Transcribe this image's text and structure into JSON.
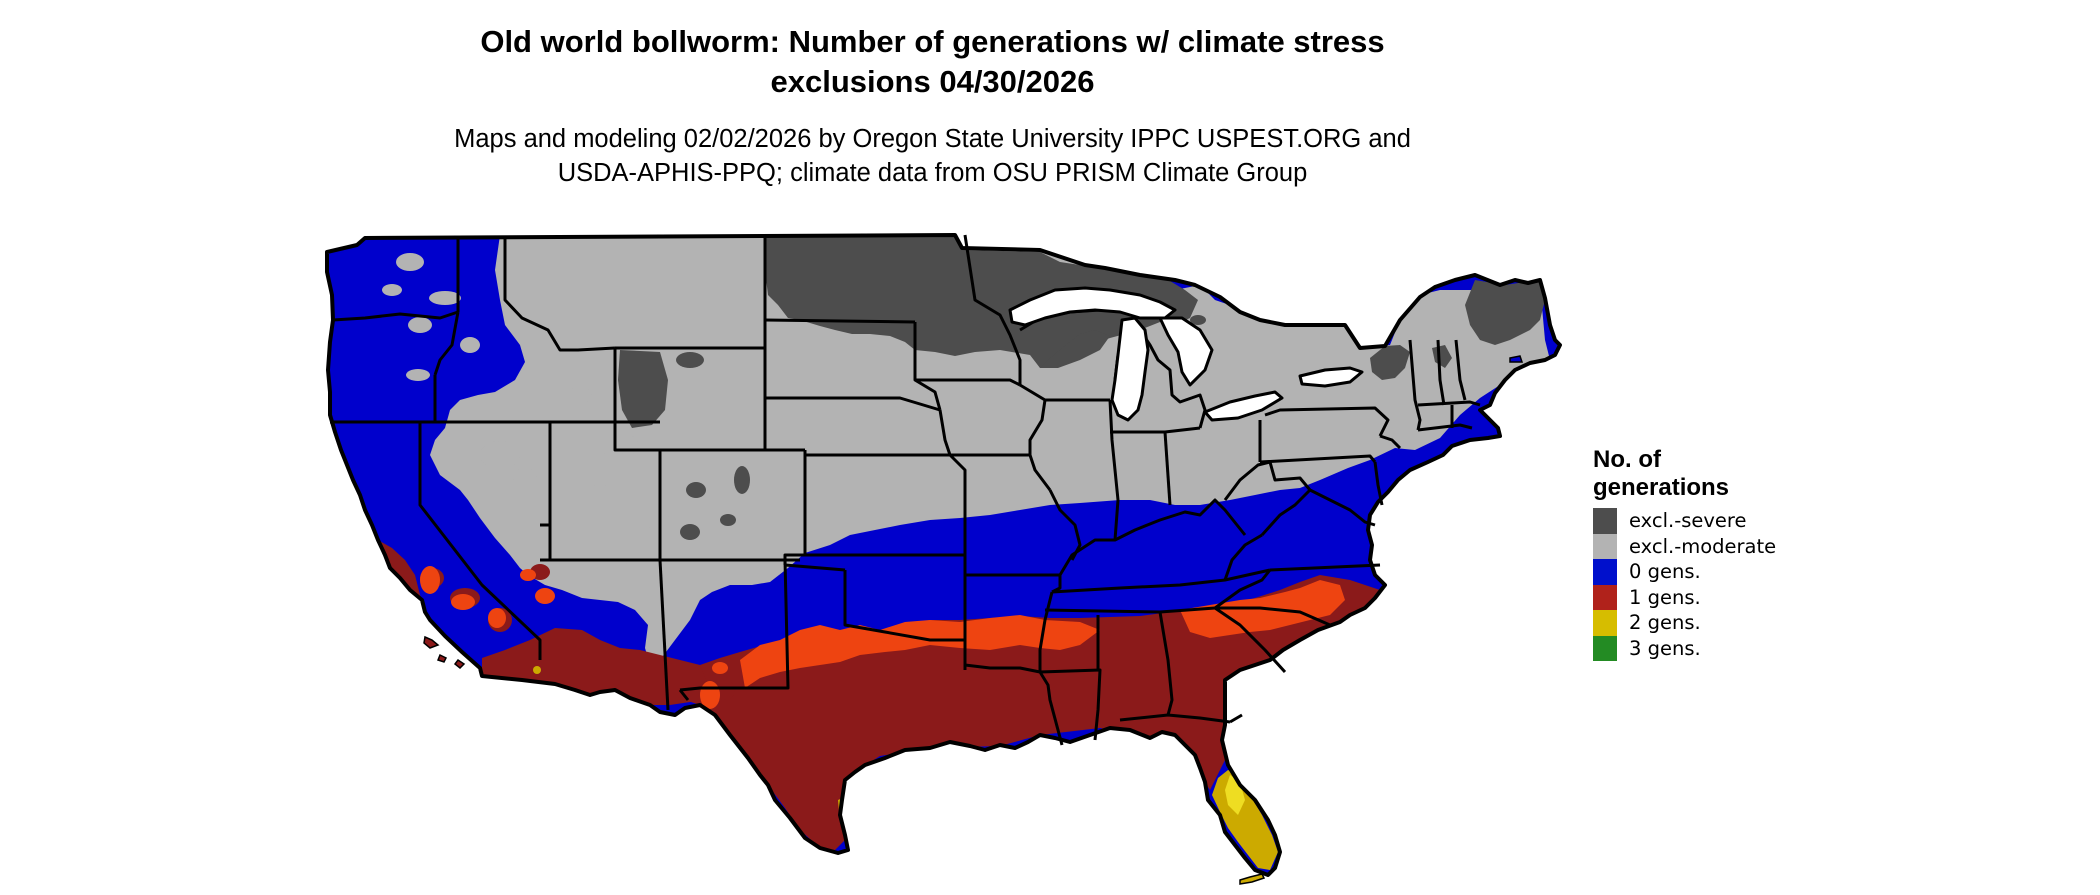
{
  "header": {
    "title_line1": "Old world bollworm: Number of generations w/ climate stress",
    "title_line2": "exclusions 04/30/2026",
    "subtitle_line1": "Maps and modeling 02/02/2026 by Oregon State University IPPC USPEST.ORG and",
    "subtitle_line2": "USDA-APHIS-PPQ; climate data from OSU PRISM Climate Group"
  },
  "legend": {
    "title_line1": "No. of",
    "title_line2": "generations",
    "items": [
      {
        "label": "excl.-severe",
        "color": "#4d4d4d"
      },
      {
        "label": "excl.-moderate",
        "color": "#b3b3b3"
      },
      {
        "label": "0 gens.",
        "color": "#0010cc"
      },
      {
        "label": "1 gens.",
        "color": "#b0221b"
      },
      {
        "label": "2 gens.",
        "color": "#d6bd00"
      },
      {
        "label": "3 gens.",
        "color": "#238b23"
      }
    ]
  },
  "colors": {
    "excl_severe": "#4d4d4d",
    "excl_moderate": "#b3b3b3",
    "gens_0": "#0000cc",
    "gens_1": "#8b1a1a",
    "gens_1_light": "#ee4411",
    "gens_2": "#ccaa00",
    "gens_2_light": "#eedd22",
    "border": "#000000"
  }
}
